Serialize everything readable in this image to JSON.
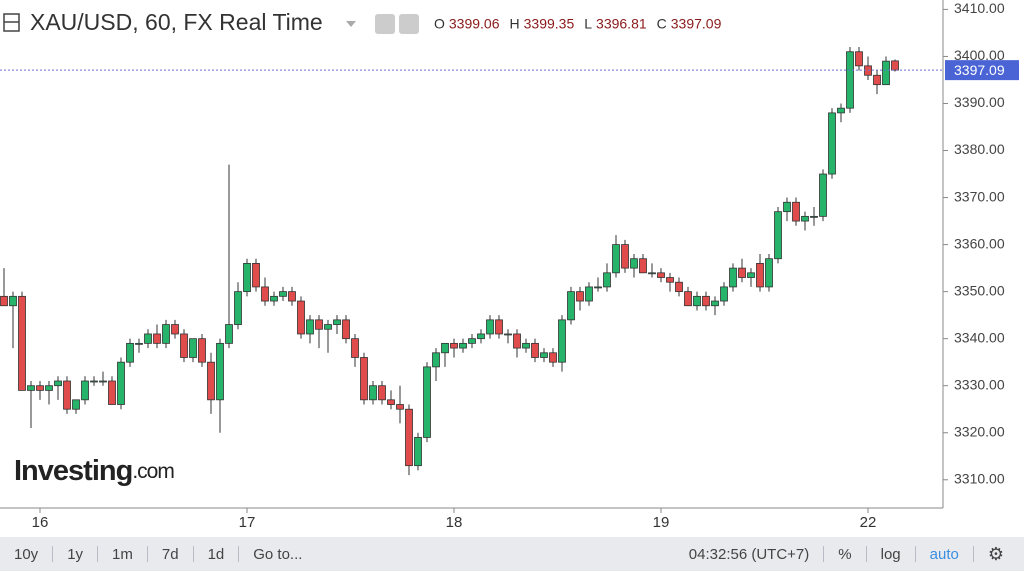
{
  "chart_data": {
    "type": "candlestick",
    "title": "XAU/USD, 60, FX Real Time",
    "ohlc_labels": [
      "O",
      "H",
      "L",
      "C"
    ],
    "logo": [
      "Investing",
      ".com"
    ],
    "up_color": "#26b36a",
    "down_color": "#e04b4b",
    "categories": [
      null,
      null,
      null,
      null,
      "16",
      null,
      null,
      null,
      null,
      null,
      null,
      null,
      null,
      null,
      null,
      null,
      null,
      null,
      null,
      null,
      null,
      null,
      null,
      null,
      null,
      null,
      null,
      "17",
      null,
      null,
      null,
      null,
      null,
      null,
      null,
      null,
      null,
      null,
      null,
      null,
      null,
      null,
      null,
      null,
      null,
      null,
      null,
      null,
      null,
      null,
      "18",
      null,
      null,
      null,
      null,
      null,
      null,
      null,
      null,
      null,
      null,
      null,
      null,
      null,
      null,
      null,
      null,
      null,
      null,
      null,
      null,
      null,
      null,
      "19",
      null,
      null,
      null,
      null,
      null,
      null,
      null,
      null,
      null,
      null,
      null,
      null,
      null,
      null,
      null,
      null,
      null,
      null,
      null,
      null,
      null,
      null,
      "22",
      null,
      null,
      null
    ],
    "open": [
      3349,
      3347,
      3349,
      3329,
      3330,
      3329,
      3330,
      3331,
      3325,
      3327,
      3331,
      3331,
      3331,
      3326,
      3335,
      3339,
      3339,
      3341,
      3339,
      3343,
      3341,
      3336,
      3340,
      3335,
      3327,
      3339,
      3343,
      3350,
      3356,
      3351,
      3348,
      3349,
      3350,
      3348,
      3341,
      3344,
      3342,
      3343,
      3344,
      3340,
      3336,
      3327,
      3330,
      3327,
      3326,
      3325,
      3313,
      3319,
      3334,
      3337,
      3339,
      3338,
      3339,
      3340,
      3341,
      3344,
      3341,
      3341,
      3338,
      3339,
      3336,
      3337,
      3335,
      3344,
      3350,
      3348,
      3351,
      3351,
      3354,
      3360,
      3355,
      3357,
      3354,
      3354,
      3353,
      3352,
      3350,
      3347,
      3349,
      3347,
      3348,
      3351,
      3355,
      3353,
      3356,
      3351,
      3357,
      3367,
      3369,
      3365,
      3366,
      3366,
      3375,
      3388,
      3389,
      3401,
      3398,
      3396,
      3394,
      3399.06
    ],
    "high": [
      3355,
      3350,
      3350,
      3331,
      3331,
      3331,
      3332,
      3332,
      3327,
      3332,
      3332,
      3333,
      3332,
      3336,
      3340,
      3340,
      3342,
      3343,
      3344,
      3344,
      3342,
      3340,
      3341,
      3337,
      3340,
      3377,
      3352,
      3357,
      3357,
      3353,
      3350,
      3351,
      3351,
      3349,
      3345,
      3345,
      3344,
      3345,
      3345,
      3341,
      3337,
      3331,
      3331,
      3329,
      3330,
      3326,
      3320,
      3335,
      3338,
      3339,
      3340,
      3340,
      3341,
      3342,
      3345,
      3345,
      3342,
      3342,
      3340,
      3340,
      3338,
      3338,
      3345,
      3351,
      3351,
      3352,
      3353,
      3356,
      3362,
      3361,
      3358,
      3358,
      3356,
      3355,
      3354,
      3353,
      3351,
      3350,
      3350,
      3349,
      3352,
      3356,
      3357,
      3355,
      3358,
      3358,
      3368,
      3370,
      3370,
      3367,
      3368,
      3376,
      3389,
      3390,
      3402,
      3402,
      3400,
      3397,
      3400,
      3399.35
    ],
    "low": [
      3347,
      3338,
      3329,
      3321,
      3327,
      3326,
      3327,
      3324,
      3324,
      3326,
      3330,
      3330,
      3326,
      3325,
      3334,
      3337,
      3338,
      3338,
      3338,
      3340,
      3335,
      3335,
      3334,
      3324,
      3320,
      3338,
      3342,
      3349,
      3350,
      3347,
      3347,
      3348,
      3347,
      3340,
      3339,
      3338,
      3337,
      3341,
      3339,
      3334,
      3326,
      3326,
      3326,
      3325,
      3322,
      3311,
      3312,
      3318,
      3331,
      3334,
      3336,
      3337,
      3338,
      3339,
      3340,
      3340,
      3339,
      3336,
      3337,
      3335,
      3335,
      3334,
      3333,
      3343,
      3346,
      3347,
      3350,
      3350,
      3353,
      3354,
      3353,
      3354,
      3353,
      3352,
      3350,
      3349,
      3347,
      3346,
      3346,
      3345,
      3347,
      3350,
      3352,
      3351,
      3350,
      3350,
      3356,
      3365,
      3364,
      3363,
      3364,
      3365,
      3374,
      3386,
      3388,
      3397,
      3395,
      3392,
      3394,
      3396.81
    ],
    "close": [
      3347,
      3349,
      3329,
      3330,
      3329,
      3330,
      3331,
      3325,
      3327,
      3331,
      3331,
      3331,
      3326,
      3335,
      3339,
      3339,
      3341,
      3339,
      3343,
      3341,
      3336,
      3340,
      3335,
      3327,
      3339,
      3343,
      3350,
      3356,
      3351,
      3348,
      3349,
      3350,
      3348,
      3341,
      3344,
      3342,
      3343,
      3344,
      3340,
      3336,
      3327,
      3330,
      3327,
      3326,
      3325,
      3313,
      3319,
      3334,
      3337,
      3339,
      3338,
      3339,
      3340,
      3341,
      3344,
      3341,
      3341,
      3338,
      3339,
      3336,
      3337,
      3335,
      3344,
      3350,
      3348,
      3351,
      3351,
      3354,
      3360,
      3355,
      3357,
      3354,
      3354,
      3353,
      3352,
      3350,
      3347,
      3349,
      3347,
      3348,
      3351,
      3355,
      3353,
      3354,
      3351,
      3357,
      3367,
      3369,
      3365,
      3366,
      3366,
      3375,
      3388,
      3389,
      3401,
      3398,
      3396,
      3394,
      3399,
      3397.09
    ],
    "ylim": [
      3304,
      3412
    ],
    "yticks": [
      {
        "value": 3310,
        "label": "3310.00"
      },
      {
        "value": 3320,
        "label": "3320.00"
      },
      {
        "value": 3330,
        "label": "3330.00"
      },
      {
        "value": 3340,
        "label": "3340.00"
      },
      {
        "value": 3350,
        "label": "3350.00"
      },
      {
        "value": 3360,
        "label": "3360.00"
      },
      {
        "value": 3370,
        "label": "3370.00"
      },
      {
        "value": 3380,
        "label": "3380.00"
      },
      {
        "value": 3390,
        "label": "3390.00"
      },
      {
        "value": 3400,
        "label": "3400.00"
      },
      {
        "value": 3410,
        "label": "3410.00"
      }
    ]
  },
  "toolbar": {
    "ranges": [
      "10y",
      "1y",
      "1m",
      "7d",
      "1d",
      "Go to..."
    ],
    "time": "04:32:56 (UTC+7)",
    "options": [
      "%",
      "log",
      "auto"
    ]
  }
}
